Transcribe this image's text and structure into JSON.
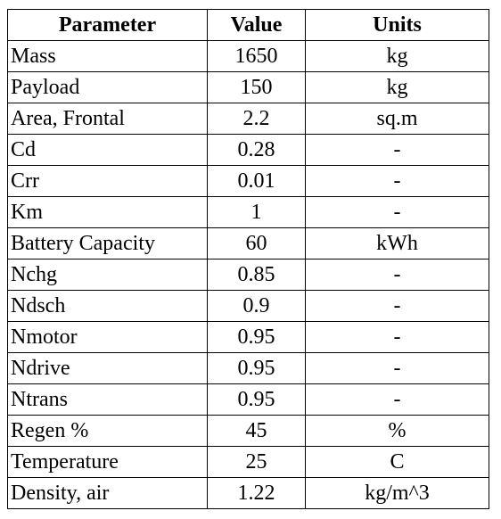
{
  "table": {
    "headers": {
      "parameter": "Parameter",
      "value": "Value",
      "units": "Units"
    },
    "rows": [
      {
        "parameter": "Mass",
        "value": "1650",
        "units": "kg"
      },
      {
        "parameter": "Payload",
        "value": "150",
        "units": "kg"
      },
      {
        "parameter": "Area, Frontal",
        "value": "2.2",
        "units": "sq.m"
      },
      {
        "parameter": "Cd",
        "value": "0.28",
        "units": "-"
      },
      {
        "parameter": "Crr",
        "value": "0.01",
        "units": "-"
      },
      {
        "parameter": "Km",
        "value": "1",
        "units": "-"
      },
      {
        "parameter": "Battery Capacity",
        "value": "60",
        "units": "kWh"
      },
      {
        "parameter": "Nchg",
        "value": "0.85",
        "units": "-"
      },
      {
        "parameter": "Ndsch",
        "value": "0.9",
        "units": "-"
      },
      {
        "parameter": "Nmotor",
        "value": "0.95",
        "units": "-"
      },
      {
        "parameter": "Ndrive",
        "value": "0.95",
        "units": "-"
      },
      {
        "parameter": "Ntrans",
        "value": "0.95",
        "units": "-"
      },
      {
        "parameter": "Regen %",
        "value": "45",
        "units": "%"
      },
      {
        "parameter": "Temperature",
        "value": "25",
        "units": "C"
      },
      {
        "parameter": "Density, air",
        "value": "1.22",
        "units": "kg/m^3"
      }
    ]
  }
}
